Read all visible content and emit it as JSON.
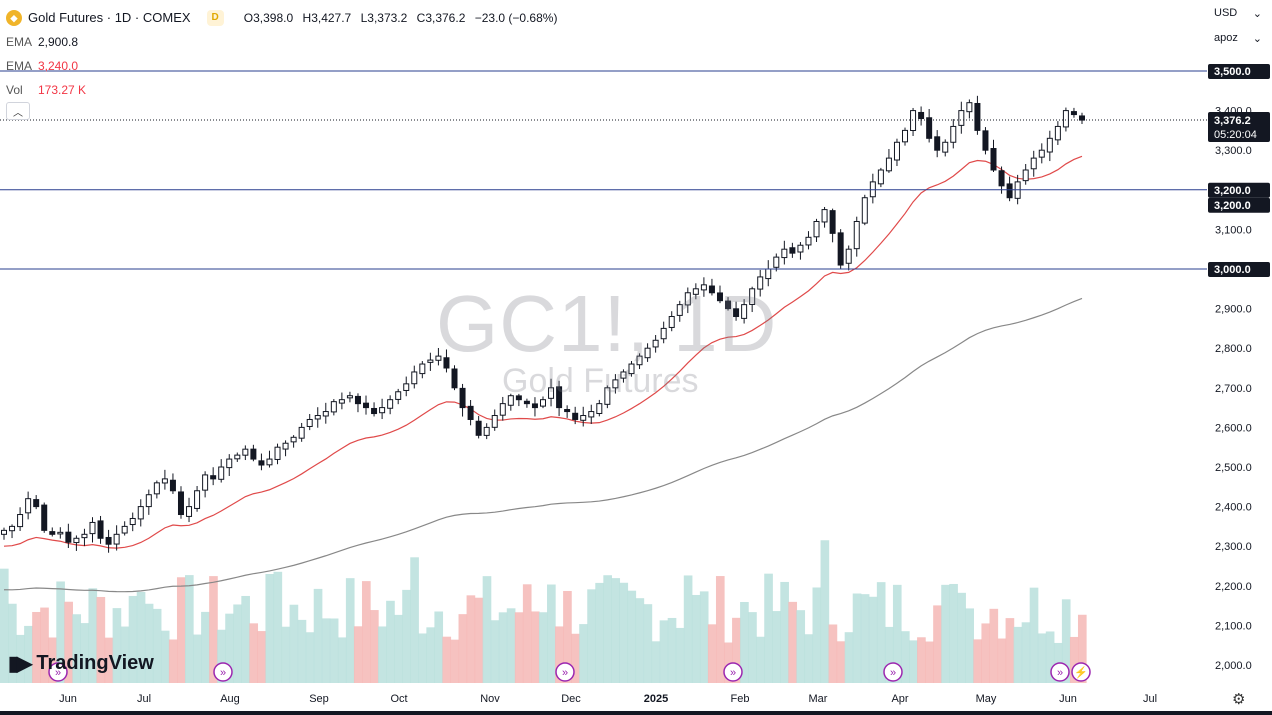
{
  "header": {
    "symbol_title": "Gold Futures · 1D · COMEX",
    "badge": "D",
    "ohlc": [
      {
        "k": "O",
        "v": "3,398.0"
      },
      {
        "k": "H",
        "v": "3,427.7"
      },
      {
        "k": "L",
        "v": "3,373.2"
      },
      {
        "k": "C",
        "v": "3,376.2"
      }
    ],
    "change": "−23.0 (−0.68%)"
  },
  "indicators": [
    {
      "name": "EMA",
      "value": "2,900.8",
      "color": "#131722"
    },
    {
      "name": "EMA",
      "value": "3,240.0",
      "color": "#f23645"
    },
    {
      "name": "Vol",
      "value": "173.27 K",
      "color": "#f23645"
    }
  ],
  "collapse_icon": "chevron-up-icon",
  "currency": "USD",
  "scale_mode": "apoz",
  "watermark": {
    "line1": "GC1!, 1D",
    "line2": "Gold Futures"
  },
  "logo": "TradingView",
  "colors": {
    "up": "#131722",
    "down": "#131722",
    "hline": "#2a3f8f",
    "ema_fast": "#e04a4a",
    "ema_slow": "#888888",
    "vol_up": "#b9dfdc",
    "vol_down": "#f5b7b5",
    "label_bg": "#131722"
  },
  "chart_data": {
    "type": "candlestick",
    "title": "Gold Futures · 1D · COMEX",
    "y_axis": {
      "ticks": [
        "3,400.0",
        "3,300.0",
        "3,200.0",
        "3,100.0",
        "3,000.0",
        "2,900.0",
        "2,800.0",
        "2,700.0",
        "2,600.0",
        "2,500.0",
        "2,400.0",
        "2,300.0",
        "2,200.0",
        "2,100.0",
        "2,000.0"
      ],
      "tick_values": [
        3400,
        3300,
        3200,
        3100,
        3000,
        2900,
        2800,
        2700,
        2600,
        2500,
        2400,
        2300,
        2200,
        2100,
        2000
      ],
      "range": [
        2000,
        3500
      ]
    },
    "x_axis": {
      "ticks": [
        "Jun",
        "Jul",
        "Aug",
        "Sep",
        "Oct",
        "Nov",
        "Dec",
        "2025",
        "Feb",
        "Mar",
        "Apr",
        "May",
        "Jun",
        "Jul"
      ]
    },
    "horizontal_lines": [
      {
        "value": 3500,
        "label": "3,500.0"
      },
      {
        "value": 3200,
        "label": "3,200.0"
      },
      {
        "value": 3000,
        "label": "3,000.0"
      }
    ],
    "price_labels": [
      {
        "value": 3376.2,
        "label": "3,376.2",
        "sub": "05:20:04"
      },
      {
        "value": 3200,
        "label": "3,200.0"
      },
      {
        "value": 3200,
        "label": "3,200.0"
      },
      {
        "value": 3000,
        "label": "3,000.0"
      }
    ],
    "last_price": 3376.2,
    "close_series": [
      2340,
      2350,
      2380,
      2420,
      2400,
      2340,
      2330,
      2335,
      2310,
      2320,
      2330,
      2360,
      2320,
      2305,
      2330,
      2350,
      2370,
      2400,
      2430,
      2460,
      2470,
      2440,
      2380,
      2400,
      2440,
      2480,
      2470,
      2500,
      2520,
      2530,
      2545,
      2520,
      2505,
      2520,
      2550,
      2560,
      2575,
      2600,
      2620,
      2630,
      2640,
      2665,
      2670,
      2680,
      2660,
      2650,
      2635,
      2650,
      2670,
      2690,
      2710,
      2740,
      2760,
      2770,
      2780,
      2750,
      2700,
      2650,
      2620,
      2580,
      2600,
      2630,
      2660,
      2680,
      2670,
      2660,
      2650,
      2670,
      2700,
      2650,
      2640,
      2620,
      2630,
      2640,
      2660,
      2700,
      2720,
      2740,
      2760,
      2780,
      2800,
      2820,
      2850,
      2880,
      2910,
      2940,
      2950,
      2960,
      2940,
      2920,
      2900,
      2880,
      2910,
      2950,
      2980,
      3000,
      3030,
      3050,
      3040,
      3060,
      3080,
      3120,
      3150,
      3090,
      3010,
      3050,
      3120,
      3180,
      3220,
      3250,
      3280,
      3320,
      3350,
      3400,
      3380,
      3330,
      3300,
      3320,
      3360,
      3400,
      3420,
      3350,
      3300,
      3250,
      3210,
      3180,
      3220,
      3250,
      3280,
      3300,
      3330,
      3360,
      3400,
      3390,
      3376
    ]
  },
  "markers": 7
}
